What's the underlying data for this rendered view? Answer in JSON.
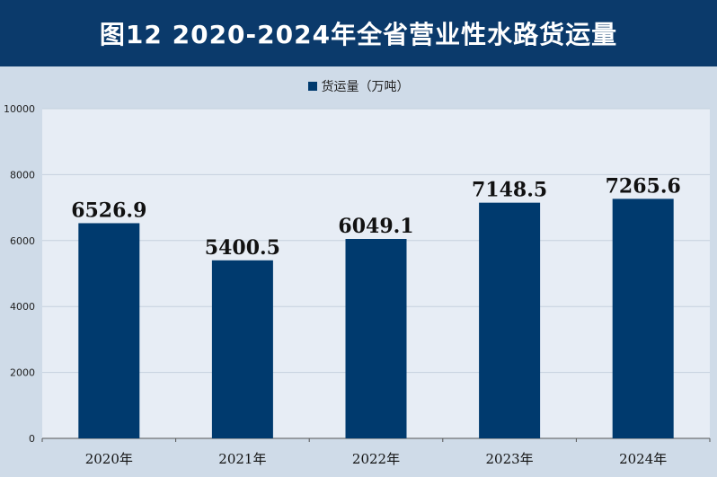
{
  "title": "图12  2020-2024年全省营业性水路货运量",
  "colors": {
    "header": "#0b3a6b",
    "bar": "#003a6e",
    "plot_bg": "#e7edf5",
    "grid": "#c6d1de"
  },
  "chart_data": {
    "type": "bar",
    "categories": [
      "2020年",
      "2021年",
      "2022年",
      "2023年",
      "2024年"
    ],
    "series": [
      {
        "name": "货运量（万吨）",
        "values": [
          6526.9,
          5400.5,
          6049.1,
          7148.5,
          7265.6
        ]
      }
    ],
    "data_labels": [
      "6526.9",
      "5400.5",
      "6049.1",
      "7148.5",
      "7265.6"
    ],
    "ylim": [
      0,
      10000
    ],
    "yticks": [
      0,
      2000,
      4000,
      6000,
      8000,
      10000
    ],
    "grid": true,
    "legend_position": "top-center"
  }
}
